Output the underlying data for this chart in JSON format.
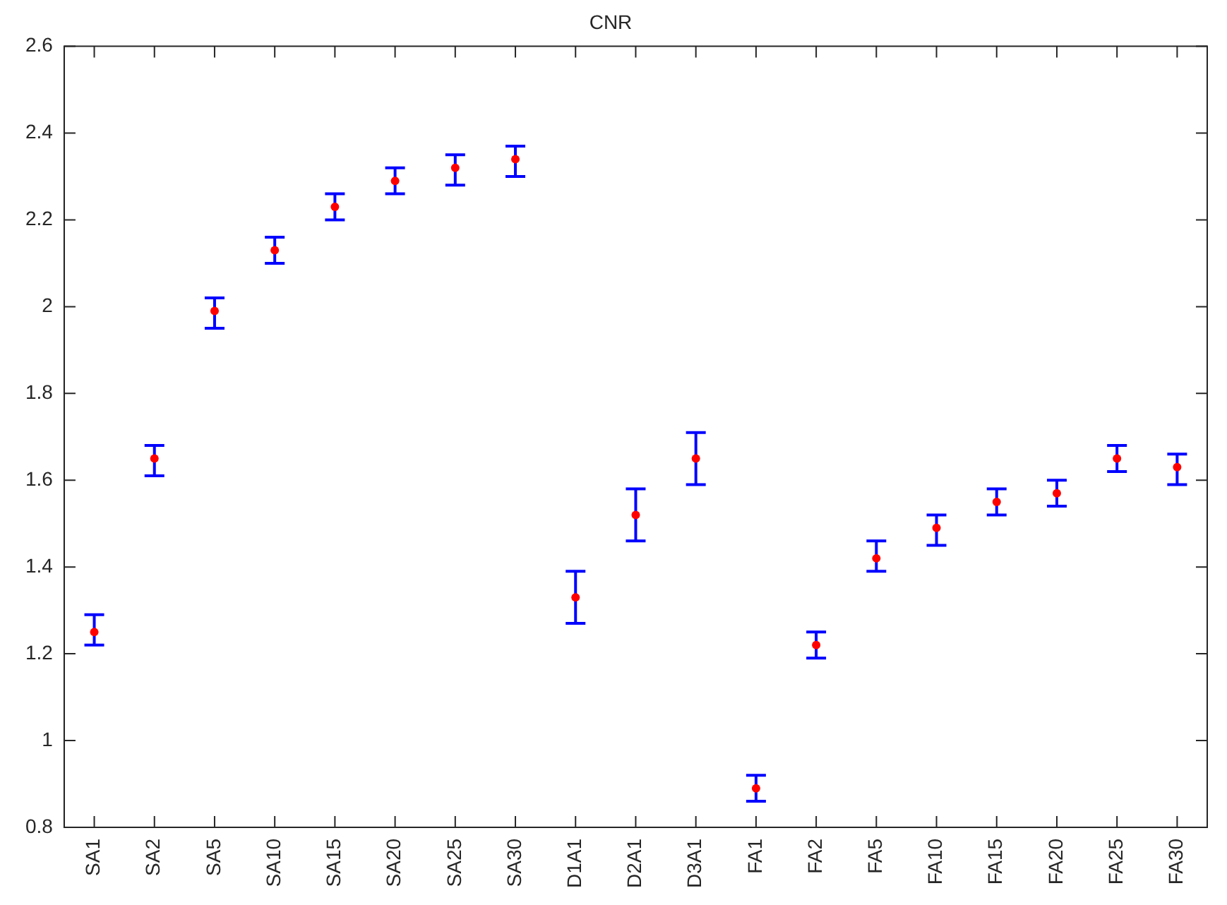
{
  "chart_data": {
    "type": "scatter",
    "title": "CNR",
    "categories": [
      "SA1",
      "SA2",
      "SA5",
      "SA10",
      "SA15",
      "SA20",
      "SA25",
      "SA30",
      "D1A1",
      "D2A1",
      "D3A1",
      "FA1",
      "FA2",
      "FA5",
      "FA10",
      "FA15",
      "FA20",
      "FA25",
      "FA30"
    ],
    "series": [
      {
        "color": "#ff0000",
        "values": [
          1.25,
          1.65,
          1.99,
          2.13,
          2.23,
          2.29,
          2.32,
          2.34,
          1.33,
          1.52,
          1.65,
          0.89,
          1.22,
          1.42,
          1.49,
          1.55,
          1.57,
          1.65,
          1.63
        ],
        "errors": [
          [
            1.22,
            1.29
          ],
          [
            1.61,
            1.68
          ],
          [
            1.95,
            2.02
          ],
          [
            2.1,
            2.16
          ],
          [
            2.2,
            2.26
          ],
          [
            2.26,
            2.32
          ],
          [
            2.28,
            2.35
          ],
          [
            2.3,
            2.37
          ],
          [
            1.27,
            1.39
          ],
          [
            1.46,
            1.58
          ],
          [
            1.59,
            1.71
          ],
          [
            0.86,
            0.92
          ],
          [
            1.19,
            1.25
          ],
          [
            1.39,
            1.46
          ],
          [
            1.45,
            1.52
          ],
          [
            1.52,
            1.58
          ],
          [
            1.54,
            1.6
          ],
          [
            1.62,
            1.68
          ],
          [
            1.59,
            1.66
          ]
        ]
      }
    ],
    "ylim": [
      0.8,
      2.6
    ],
    "yticks": [
      0.8,
      1,
      1.2,
      1.4,
      1.6,
      1.8,
      2,
      2.2,
      2.4,
      2.6
    ],
    "marker": "circle",
    "grid": false,
    "legend": false
  }
}
